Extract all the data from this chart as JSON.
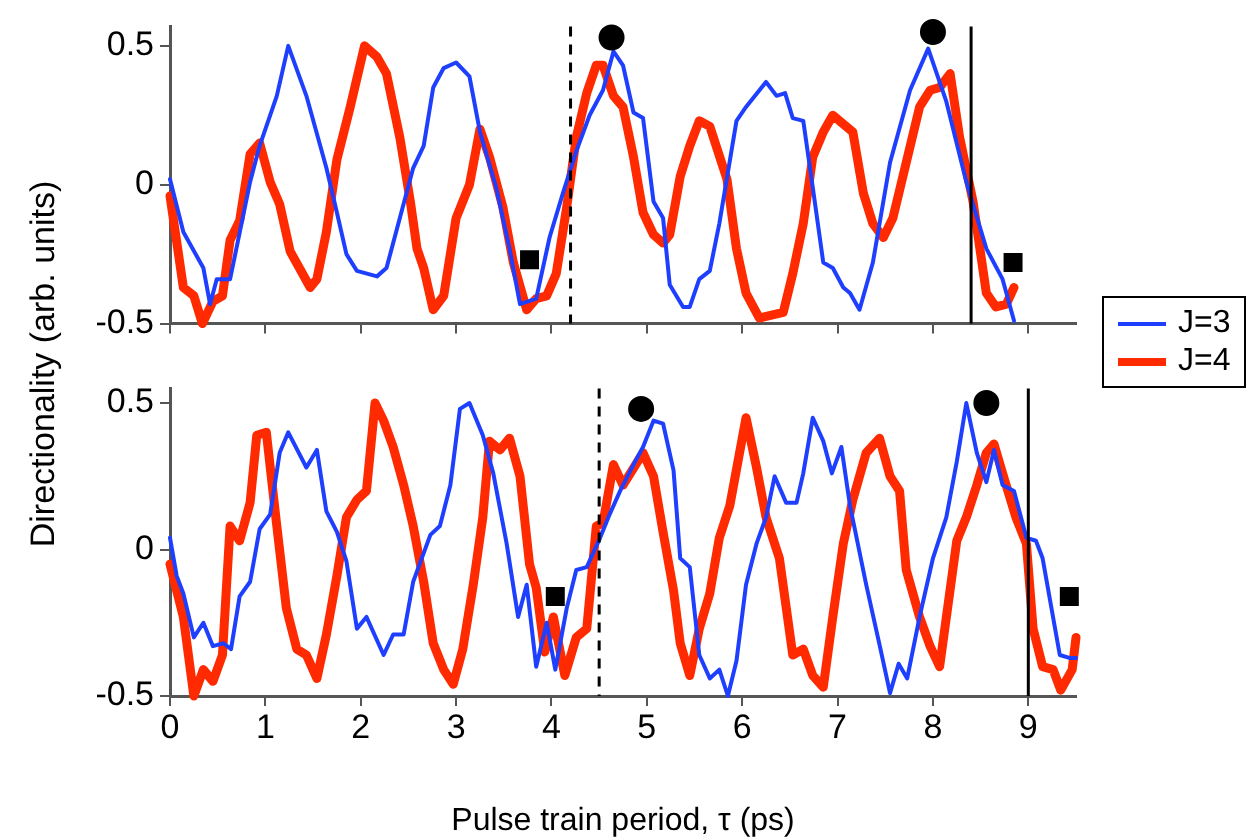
{
  "chart_data": [
    {
      "type": "line",
      "ylabel": "Directionality (arb. units)",
      "xlim": [
        0,
        9.5
      ],
      "xticks": [
        0,
        1,
        2,
        3,
        4,
        5,
        6,
        7,
        8,
        9
      ],
      "ylim": [
        -0.5,
        0.57
      ],
      "yticks": [
        -0.5,
        0,
        0.5
      ],
      "grid": false,
      "legend": "right",
      "tick_labels": "y",
      "marker": "none",
      "ref_lines": [
        {
          "axis": "x",
          "value": 4.2,
          "color": "#000000",
          "line_style": "dashed"
        },
        {
          "axis": "x",
          "value": 8.4,
          "color": "#000000",
          "line_style": "solid"
        }
      ],
      "series": [
        {
          "name": "J=3",
          "color": "#1f3fff",
          "x": [
            0,
            0.14,
            0.35,
            0.42,
            0.49,
            0.63,
            0.84,
            0.94,
            1.12,
            1.24,
            1.43,
            1.64,
            1.75,
            1.85,
            1.96,
            2.17,
            2.27,
            2.41,
            2.55,
            2.66,
            2.76,
            2.87,
            3.0,
            3.14,
            3.25,
            3.42,
            3.56,
            3.67,
            3.84,
            3.98,
            4.12,
            4.26,
            4.4,
            4.54,
            4.65,
            4.75,
            4.86,
            4.96,
            5.07,
            5.17,
            5.24,
            5.38,
            5.45,
            5.55,
            5.66,
            5.76,
            5.94,
            6.04,
            6.25,
            6.36,
            6.45,
            6.53,
            6.64,
            6.74,
            6.85,
            6.95,
            7.06,
            7.13,
            7.23,
            7.37,
            7.55,
            7.76,
            7.95,
            8.14,
            8.35,
            8.56,
            8.73,
            8.85
          ],
          "values": [
            0.02,
            -0.17,
            -0.3,
            -0.43,
            -0.34,
            -0.34,
            0.01,
            0.14,
            0.32,
            0.5,
            0.32,
            0.06,
            -0.1,
            -0.25,
            -0.31,
            -0.33,
            -0.3,
            -0.12,
            0.06,
            0.14,
            0.35,
            0.42,
            0.44,
            0.39,
            0.19,
            -0.01,
            -0.23,
            -0.43,
            -0.41,
            -0.19,
            -0.03,
            0.12,
            0.25,
            0.34,
            0.48,
            0.43,
            0.26,
            0.24,
            -0.06,
            -0.12,
            -0.36,
            -0.44,
            -0.44,
            -0.34,
            -0.31,
            -0.14,
            0.23,
            0.28,
            0.37,
            0.32,
            0.33,
            0.24,
            0.23,
            -0.01,
            -0.28,
            -0.3,
            -0.37,
            -0.39,
            -0.45,
            -0.28,
            0.08,
            0.34,
            0.49,
            0.3,
            0.01,
            -0.23,
            -0.34,
            -0.49
          ]
        },
        {
          "name": "J=4",
          "color": "#ff2a00",
          "x": [
            0,
            0.14,
            0.25,
            0.34,
            0.45,
            0.55,
            0.63,
            0.73,
            0.84,
            0.94,
            1.05,
            1.15,
            1.26,
            1.47,
            1.54,
            1.64,
            1.75,
            1.89,
            2.04,
            2.17,
            2.27,
            2.41,
            2.52,
            2.59,
            2.66,
            2.76,
            2.87,
            3.0,
            3.14,
            3.25,
            3.35,
            3.49,
            3.6,
            3.74,
            3.84,
            3.95,
            4.05,
            4.16,
            4.26,
            4.37,
            4.47,
            4.54,
            4.65,
            4.75,
            4.86,
            4.96,
            5.07,
            5.17,
            5.24,
            5.35,
            5.45,
            5.55,
            5.66,
            5.84,
            5.94,
            6.04,
            6.18,
            6.43,
            6.53,
            6.64,
            6.74,
            6.85,
            6.95,
            7.16,
            7.27,
            7.37,
            7.48,
            7.58,
            7.72,
            7.86,
            7.97,
            8.07,
            8.18,
            8.28,
            8.42,
            8.56,
            8.66,
            8.77,
            8.85
          ],
          "values": [
            -0.04,
            -0.37,
            -0.4,
            -0.5,
            -0.42,
            -0.4,
            -0.2,
            -0.13,
            0.11,
            0.15,
            0.01,
            -0.07,
            -0.24,
            -0.37,
            -0.34,
            -0.17,
            0.09,
            0.28,
            0.5,
            0.46,
            0.4,
            0.17,
            -0.06,
            -0.23,
            -0.3,
            -0.45,
            -0.4,
            -0.12,
            0,
            0.2,
            0.1,
            -0.08,
            -0.28,
            -0.45,
            -0.41,
            -0.4,
            -0.32,
            -0.08,
            0.17,
            0.33,
            0.43,
            0.43,
            0.32,
            0.28,
            0.1,
            -0.1,
            -0.18,
            -0.21,
            -0.18,
            0.03,
            0.14,
            0.23,
            0.21,
            0.02,
            -0.23,
            -0.39,
            -0.48,
            -0.46,
            -0.32,
            -0.14,
            0.1,
            0.19,
            0.25,
            0.19,
            -0.03,
            -0.14,
            -0.19,
            -0.12,
            0.08,
            0.28,
            0.34,
            0.35,
            0.4,
            0.17,
            -0.06,
            -0.39,
            -0.44,
            -0.43,
            -0.37
          ]
        },
        {
          "type": "scatter",
          "marker": "circle",
          "color": "#000000",
          "x": [
            4.63,
            8.0
          ],
          "values": [
            0.53,
            0.55
          ]
        },
        {
          "type": "scatter",
          "marker": "square",
          "color": "#000000",
          "x": [
            3.77,
            8.84
          ],
          "values": [
            -0.27,
            -0.28
          ]
        }
      ]
    },
    {
      "type": "line",
      "xlabel": "Pulse train period, τ (ps)",
      "xlim": [
        0,
        9.5
      ],
      "xticks": [
        0,
        1,
        2,
        3,
        4,
        5,
        6,
        7,
        8,
        9
      ],
      "ylim": [
        -0.5,
        0.55
      ],
      "yticks": [
        -0.5,
        0,
        0.5
      ],
      "grid": false,
      "marker": "none",
      "ref_lines": [
        {
          "axis": "x",
          "value": 4.5,
          "color": "#000000",
          "line_style": "dashed"
        },
        {
          "axis": "x",
          "value": 9.0,
          "color": "#000000",
          "line_style": "solid"
        }
      ],
      "series": [
        {
          "color": "#1f3fff",
          "x": [
            0,
            0.07,
            0.14,
            0.25,
            0.35,
            0.45,
            0.56,
            0.64,
            0.73,
            0.84,
            0.94,
            1.05,
            1.15,
            1.24,
            1.43,
            1.54,
            1.64,
            1.75,
            1.85,
            1.96,
            2.06,
            2.24,
            2.34,
            2.45,
            2.55,
            2.73,
            2.83,
            2.94,
            3.04,
            3.14,
            3.28,
            3.39,
            3.53,
            3.65,
            3.74,
            3.84,
            3.95,
            4.04,
            4.16,
            4.26,
            4.37,
            4.51,
            4.61,
            4.72,
            4.86,
            4.96,
            5.07,
            5.17,
            5.28,
            5.35,
            5.45,
            5.55,
            5.66,
            5.76,
            5.85,
            5.94,
            6.04,
            6.15,
            6.25,
            6.34,
            6.46,
            6.57,
            6.64,
            6.74,
            6.85,
            6.94,
            7.04,
            7.13,
            7.3,
            7.45,
            7.55,
            7.64,
            7.73,
            7.86,
            8.0,
            8.14,
            8.25,
            8.35,
            8.46,
            8.56,
            8.64,
            8.73,
            8.85,
            8.98,
            9.08,
            9.15,
            9.33,
            9.43,
            9.5
          ],
          "values": [
            0.04,
            -0.09,
            -0.15,
            -0.3,
            -0.25,
            -0.33,
            -0.32,
            -0.34,
            -0.16,
            -0.11,
            0.07,
            0.12,
            0.33,
            0.4,
            0.28,
            0.34,
            0.13,
            0.06,
            -0.04,
            -0.27,
            -0.23,
            -0.36,
            -0.29,
            -0.29,
            -0.11,
            0.05,
            0.08,
            0.22,
            0.48,
            0.5,
            0.39,
            0.26,
            0.02,
            -0.23,
            -0.12,
            -0.4,
            -0.25,
            -0.41,
            -0.2,
            -0.07,
            -0.06,
            0.04,
            0.12,
            0.2,
            0.29,
            0.35,
            0.44,
            0.43,
            0.27,
            -0.03,
            -0.06,
            -0.36,
            -0.44,
            -0.41,
            -0.5,
            -0.38,
            -0.12,
            0.02,
            0.11,
            0.25,
            0.16,
            0.16,
            0.26,
            0.45,
            0.37,
            0.26,
            0.35,
            0.15,
            -0.12,
            -0.34,
            -0.49,
            -0.39,
            -0.44,
            -0.23,
            -0.03,
            0.11,
            0.3,
            0.5,
            0.33,
            0.23,
            0.34,
            0.22,
            0.2,
            0.04,
            0.03,
            -0.03,
            -0.36,
            -0.37,
            -0.37
          ]
        },
        {
          "color": "#ff2a00",
          "x": [
            0,
            0.14,
            0.25,
            0.35,
            0.45,
            0.55,
            0.63,
            0.73,
            0.84,
            0.91,
            1.01,
            1.12,
            1.22,
            1.33,
            1.43,
            1.54,
            1.64,
            1.75,
            1.85,
            1.96,
            2.06,
            2.15,
            2.24,
            2.34,
            2.45,
            2.55,
            2.66,
            2.76,
            2.87,
            2.97,
            3.07,
            3.18,
            3.28,
            3.35,
            3.46,
            3.56,
            3.67,
            3.77,
            3.84,
            3.93,
            4.02,
            4.14,
            4.26,
            4.37,
            4.47,
            4.54,
            4.65,
            4.75,
            4.96,
            5.07,
            5.17,
            5.28,
            5.35,
            5.45,
            5.55,
            5.66,
            5.76,
            5.87,
            6.04,
            6.15,
            6.25,
            6.39,
            6.53,
            6.64,
            6.74,
            6.85,
            6.95,
            7.06,
            7.16,
            7.3,
            7.44,
            7.55,
            7.65,
            7.72,
            7.86,
            7.97,
            8.07,
            8.25,
            8.35,
            8.46,
            8.56,
            8.64,
            8.73,
            8.87,
            8.98,
            9.05,
            9.15,
            9.26,
            9.34,
            9.46,
            9.5
          ],
          "values": [
            -0.05,
            -0.23,
            -0.5,
            -0.41,
            -0.45,
            -0.36,
            0.08,
            0.03,
            0.16,
            0.39,
            0.4,
            0.08,
            -0.2,
            -0.34,
            -0.36,
            -0.44,
            -0.29,
            -0.09,
            0.11,
            0.17,
            0.2,
            0.5,
            0.44,
            0.35,
            0.22,
            0.08,
            -0.11,
            -0.32,
            -0.41,
            -0.46,
            -0.34,
            -0.12,
            0.11,
            0.37,
            0.34,
            0.38,
            0.25,
            -0.05,
            -0.13,
            -0.35,
            -0.23,
            -0.43,
            -0.3,
            -0.27,
            0.08,
            0.09,
            0.29,
            0.22,
            0.33,
            0.25,
            0.06,
            -0.14,
            -0.32,
            -0.43,
            -0.27,
            -0.15,
            0.04,
            0.15,
            0.45,
            0.28,
            0.11,
            -0.03,
            -0.36,
            -0.34,
            -0.43,
            -0.47,
            -0.23,
            0.02,
            0.17,
            0.33,
            0.38,
            0.25,
            0.2,
            -0.07,
            -0.23,
            -0.33,
            -0.4,
            0.03,
            0.11,
            0.22,
            0.33,
            0.36,
            0.26,
            0.11,
            0.02,
            -0.27,
            -0.4,
            -0.41,
            -0.48,
            -0.41,
            -0.3
          ]
        },
        {
          "type": "scatter",
          "marker": "circle",
          "color": "#000000",
          "x": [
            4.94,
            8.56
          ],
          "values": [
            0.48,
            0.5
          ]
        },
        {
          "type": "scatter",
          "marker": "square",
          "color": "#000000",
          "x": [
            4.04,
            9.43
          ],
          "values": [
            -0.16,
            -0.16
          ]
        }
      ]
    }
  ]
}
